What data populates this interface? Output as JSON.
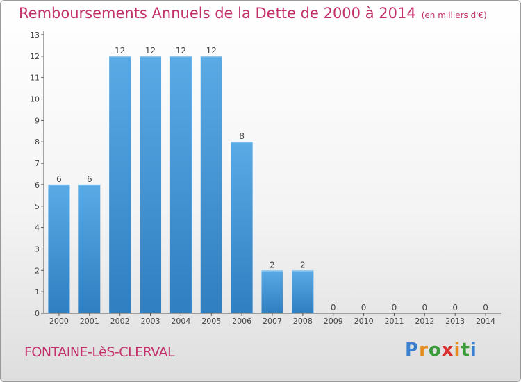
{
  "header": {
    "title": "Remboursements Annuels de la Dette de 2000 à 2014",
    "subtitle": "(en milliers d'€)"
  },
  "footer": {
    "town": "FONTAINE-LèS-CLERVAL",
    "logo": "Proxiti"
  },
  "colors": {
    "accent": "#c2306a",
    "bar": "#4a98d8"
  },
  "chart_data": {
    "type": "bar",
    "title": "Remboursements Annuels de la Dette de 2000 à 2014",
    "xlabel": "",
    "ylabel": "",
    "categories": [
      "2000",
      "2001",
      "2002",
      "2003",
      "2004",
      "2005",
      "2006",
      "2007",
      "2008",
      "2009",
      "2010",
      "2011",
      "2012",
      "2013",
      "2014"
    ],
    "values": [
      6,
      6,
      12,
      12,
      12,
      12,
      8,
      2,
      2,
      0,
      0,
      0,
      0,
      0,
      0
    ],
    "ylim": [
      0,
      13
    ],
    "yticks": [
      0,
      1,
      2,
      3,
      4,
      5,
      6,
      7,
      8,
      9,
      10,
      11,
      12,
      13
    ],
    "grid": false,
    "legend": "none"
  }
}
